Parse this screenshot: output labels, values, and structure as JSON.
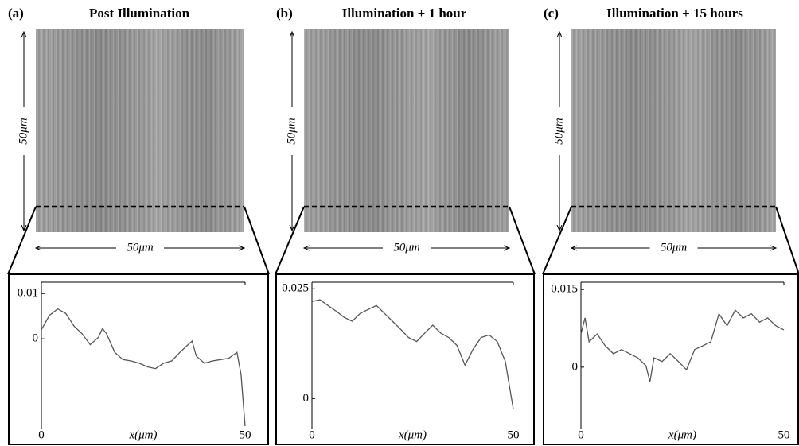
{
  "chart_data": [
    {
      "type": "line",
      "panel_label": "(a)",
      "title": "Post Illumination",
      "x_label": "x(μm)",
      "x": [
        0,
        2,
        4,
        6,
        8,
        10,
        12,
        14,
        15,
        16,
        18,
        20,
        22,
        24,
        26,
        28,
        30,
        32,
        34,
        36,
        37,
        38,
        40,
        42,
        44,
        46,
        48,
        49,
        50
      ],
      "series": [
        {
          "color": "#555555",
          "values": [
            0.002,
            0.0052,
            0.0066,
            0.0056,
            0.0028,
            0.0011,
            -0.0013,
            0.0003,
            0.0023,
            0.0011,
            -0.003,
            -0.0046,
            -0.0049,
            -0.0054,
            -0.0062,
            -0.0066,
            -0.0054,
            -0.0049,
            -0.003,
            -0.0013,
            -0.0005,
            -0.0038,
            -0.0054,
            -0.0049,
            -0.0046,
            -0.0043,
            -0.003,
            -0.0079,
            -0.0193
          ]
        }
      ],
      "xlim": [
        0,
        50
      ],
      "xticks": [
        0,
        50
      ],
      "ylim": [
        -0.02,
        0.0125
      ],
      "yticks": [
        0,
        0.01
      ]
    },
    {
      "type": "line",
      "panel_label": "(b)",
      "title": "Illumination + 1 hour",
      "x_label": "x(μm)",
      "x": [
        0,
        2,
        4,
        6,
        8,
        10,
        12,
        14,
        16,
        18,
        20,
        22,
        24,
        26,
        28,
        30,
        32,
        34,
        36,
        38,
        40,
        42,
        44,
        46,
        48,
        50
      ],
      "series": [
        {
          "color": "#555555",
          "values": [
            0.0221,
            0.0225,
            0.0212,
            0.0199,
            0.0185,
            0.0176,
            0.0194,
            0.0203,
            0.0212,
            0.0194,
            0.0176,
            0.0158,
            0.0139,
            0.013,
            0.0149,
            0.0167,
            0.0149,
            0.0139,
            0.0121,
            0.0076,
            0.0112,
            0.0139,
            0.0145,
            0.013,
            0.0085,
            -0.0024
          ]
        }
      ],
      "xlim": [
        0,
        50
      ],
      "xticks": [
        0,
        50
      ],
      "ylim": [
        -0.007,
        0.0265
      ],
      "yticks": [
        0,
        0.025
      ]
    },
    {
      "type": "line",
      "panel_label": "(c)",
      "title": "Illumination + 15 hours",
      "x_label": "x(μm)",
      "x": [
        0,
        1,
        2,
        4,
        6,
        8,
        10,
        12,
        14,
        16,
        17,
        18,
        20,
        22,
        24,
        26,
        28,
        30,
        32,
        34,
        36,
        38,
        40,
        42,
        44,
        46,
        48,
        50
      ],
      "series": [
        {
          "color": "#555555",
          "values": [
            0.0064,
            0.0095,
            0.0049,
            0.0064,
            0.0041,
            0.0026,
            0.0034,
            0.0026,
            0.0018,
            0.0003,
            -0.0028,
            0.0018,
            0.0011,
            0.0026,
            0.0011,
            -0.0005,
            0.0034,
            0.0041,
            0.0049,
            0.0103,
            0.008,
            0.011,
            0.0095,
            0.0103,
            0.0087,
            0.0095,
            0.008,
            0.0072
          ]
        }
      ],
      "xlim": [
        0,
        50
      ],
      "xticks": [
        0,
        50
      ],
      "ylim": [
        -0.012,
        0.0164
      ],
      "yticks": [
        0,
        0.015
      ]
    }
  ],
  "images": [
    {
      "height_label": "50μm",
      "width_label": "50μm"
    },
    {
      "height_label": "50μm",
      "width_label": "50μm"
    },
    {
      "height_label": "50μm",
      "width_label": "50μm"
    }
  ]
}
